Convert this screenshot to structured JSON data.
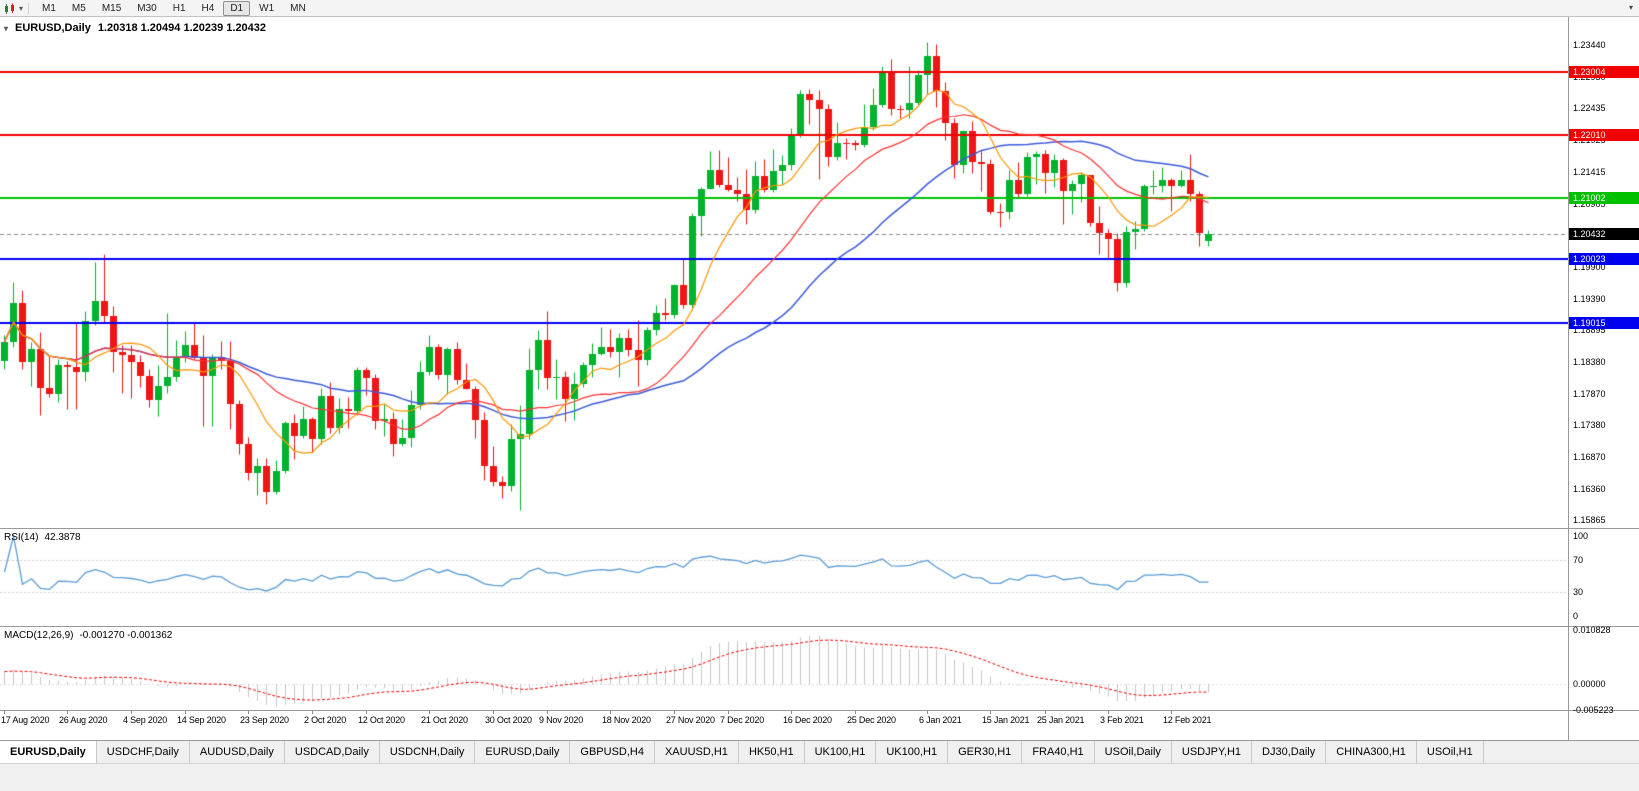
{
  "toolbar": {
    "chart_type_icon": "candlestick-chart-icon",
    "dropdown_icon": "chevron-down-icon",
    "overflow_icon": "chevron-down-icon",
    "timeframes": [
      "M1",
      "M5",
      "M15",
      "M30",
      "H1",
      "H4",
      "D1",
      "W1",
      "MN"
    ],
    "active_timeframe": "D1"
  },
  "chart": {
    "title": "EURUSD,Daily",
    "ohlc": "1.20318 1.20494 1.20239 1.20432",
    "colors": {
      "up": "#00b22d",
      "down": "#ef1515",
      "ma_fast": "#ff9500",
      "ma_mid": "#ff3333",
      "ma_slow": "#3b5bdb",
      "current_line": "#8a8a8a",
      "current_badge": "#000000"
    },
    "price_axis_labels": [
      "1.23440",
      "1.22930",
      "1.22435",
      "1.21925",
      "1.21415",
      "1.20905",
      "1.20395",
      "1.19900",
      "1.19390",
      "1.18895",
      "1.18380",
      "1.17870",
      "1.17380",
      "1.16870",
      "1.16360",
      "1.15865"
    ],
    "levels": [
      {
        "price": 1.23004,
        "label": "1.23004",
        "color": "#f00000"
      },
      {
        "price": 1.2201,
        "label": "1.22010",
        "color": "#f00000"
      },
      {
        "price": 1.21002,
        "label": "1.21002",
        "color": "#00c000"
      },
      {
        "price": 1.20023,
        "label": "1.20023",
        "color": "#0000f0"
      },
      {
        "price": 1.19015,
        "label": "1.19015",
        "color": "#0000f0"
      }
    ],
    "current_price": {
      "price": 1.20432,
      "label": "1.20432"
    },
    "date_labels": [
      {
        "i": 0,
        "label": "17 Aug 2020"
      },
      {
        "i": 7,
        "label": "26 Aug 2020"
      },
      {
        "i": 14,
        "label": "4 Sep 2020"
      },
      {
        "i": 20,
        "label": "14 Sep 2020"
      },
      {
        "i": 27,
        "label": "23 Sep 2020"
      },
      {
        "i": 34,
        "label": "2 Oct 2020"
      },
      {
        "i": 40,
        "label": "12 Oct 2020"
      },
      {
        "i": 47,
        "label": "21 Oct 2020"
      },
      {
        "i": 54,
        "label": "30 Oct 2020"
      },
      {
        "i": 60,
        "label": "9 Nov 2020"
      },
      {
        "i": 67,
        "label": "18 Nov 2020"
      },
      {
        "i": 74,
        "label": "27 Nov 2020"
      },
      {
        "i": 80,
        "label": "7 Dec 2020"
      },
      {
        "i": 87,
        "label": "16 Dec 2020"
      },
      {
        "i": 94,
        "label": "25 Dec 2020"
      },
      {
        "i": 102,
        "label": "6 Jan 2021"
      },
      {
        "i": 109,
        "label": "15 Jan 2021"
      },
      {
        "i": 115,
        "label": "25 Jan 2021"
      },
      {
        "i": 122,
        "label": "3 Feb 2021"
      },
      {
        "i": 129,
        "label": "12 Feb 2021"
      }
    ],
    "candles": [
      [
        1.184,
        1.1882,
        1.1827,
        1.1871
      ],
      [
        1.1871,
        1.1966,
        1.1863,
        1.1933
      ],
      [
        1.1933,
        1.1953,
        1.1828,
        1.1839
      ],
      [
        1.1839,
        1.187,
        1.18,
        1.1859
      ],
      [
        1.1859,
        1.1886,
        1.1754,
        1.1797
      ],
      [
        1.1797,
        1.1848,
        1.1782,
        1.1788
      ],
      [
        1.1788,
        1.1843,
        1.1774,
        1.1833
      ],
      [
        1.1833,
        1.184,
        1.1763,
        1.1831
      ],
      [
        1.1831,
        1.1902,
        1.1763,
        1.1823
      ],
      [
        1.1823,
        1.192,
        1.1808,
        1.1904
      ],
      [
        1.1904,
        1.1998,
        1.1898,
        1.1936
      ],
      [
        1.1936,
        1.2011,
        1.1901,
        1.1912
      ],
      [
        1.1912,
        1.1928,
        1.1822,
        1.1854
      ],
      [
        1.1854,
        1.1865,
        1.1789,
        1.185
      ],
      [
        1.185,
        1.1865,
        1.1781,
        1.1839
      ],
      [
        1.1839,
        1.185,
        1.1799,
        1.1816
      ],
      [
        1.1816,
        1.1827,
        1.1766,
        1.1778
      ],
      [
        1.1778,
        1.1834,
        1.1753,
        1.1801
      ],
      [
        1.1801,
        1.1917,
        1.1789,
        1.1814
      ],
      [
        1.1814,
        1.1874,
        1.1809,
        1.1846
      ],
      [
        1.1846,
        1.1888,
        1.1839,
        1.1866
      ],
      [
        1.1866,
        1.19,
        1.1843,
        1.1845
      ],
      [
        1.1845,
        1.1882,
        1.1737,
        1.1816
      ],
      [
        1.1816,
        1.1852,
        1.1736,
        1.1847
      ],
      [
        1.1847,
        1.1872,
        1.1827,
        1.184
      ],
      [
        1.184,
        1.1872,
        1.1731,
        1.1772
      ],
      [
        1.1772,
        1.1778,
        1.1692,
        1.1707
      ],
      [
        1.1707,
        1.1719,
        1.1651,
        1.1661
      ],
      [
        1.1661,
        1.1686,
        1.1626,
        1.1672
      ],
      [
        1.1672,
        1.1685,
        1.1612,
        1.1631
      ],
      [
        1.1631,
        1.1683,
        1.1628,
        1.1665
      ],
      [
        1.1665,
        1.1745,
        1.1661,
        1.1742
      ],
      [
        1.1742,
        1.1755,
        1.1684,
        1.172
      ],
      [
        1.172,
        1.1769,
        1.1717,
        1.1747
      ],
      [
        1.1747,
        1.1751,
        1.1695,
        1.1716
      ],
      [
        1.1716,
        1.1797,
        1.1708,
        1.1784
      ],
      [
        1.1784,
        1.1806,
        1.1725,
        1.1733
      ],
      [
        1.1733,
        1.1781,
        1.1725,
        1.1763
      ],
      [
        1.1763,
        1.1782,
        1.1733,
        1.1761
      ],
      [
        1.1761,
        1.1831,
        1.1754,
        1.1826
      ],
      [
        1.1826,
        1.1831,
        1.1786,
        1.1813
      ],
      [
        1.1813,
        1.1819,
        1.1731,
        1.1745
      ],
      [
        1.1745,
        1.1772,
        1.172,
        1.1747
      ],
      [
        1.1747,
        1.1758,
        1.1688,
        1.1708
      ],
      [
        1.1708,
        1.1747,
        1.1704,
        1.1718
      ],
      [
        1.1718,
        1.1794,
        1.1703,
        1.177
      ],
      [
        1.177,
        1.184,
        1.1764,
        1.1823
      ],
      [
        1.1823,
        1.1881,
        1.1817,
        1.1862
      ],
      [
        1.1862,
        1.1868,
        1.1811,
        1.1818
      ],
      [
        1.1818,
        1.1863,
        1.1787,
        1.186
      ],
      [
        1.186,
        1.187,
        1.1803,
        1.181
      ],
      [
        1.181,
        1.1837,
        1.1795,
        1.1796
      ],
      [
        1.1796,
        1.18,
        1.1718,
        1.1746
      ],
      [
        1.1746,
        1.1759,
        1.165,
        1.1673
      ],
      [
        1.1673,
        1.1704,
        1.164,
        1.1647
      ],
      [
        1.1647,
        1.1656,
        1.1621,
        1.1641
      ],
      [
        1.1641,
        1.174,
        1.1633,
        1.1715
      ],
      [
        1.1715,
        1.177,
        1.1602,
        1.1723
      ],
      [
        1.1723,
        1.1861,
        1.1716,
        1.1825
      ],
      [
        1.1825,
        1.189,
        1.1795,
        1.1874
      ],
      [
        1.1874,
        1.192,
        1.1795,
        1.1813
      ],
      [
        1.1813,
        1.1843,
        1.1779,
        1.1814
      ],
      [
        1.1814,
        1.1824,
        1.1745,
        1.1779
      ],
      [
        1.1779,
        1.1823,
        1.1746,
        1.1803
      ],
      [
        1.1803,
        1.1839,
        1.1799,
        1.1834
      ],
      [
        1.1834,
        1.1869,
        1.1814,
        1.1852
      ],
      [
        1.1852,
        1.1894,
        1.185,
        1.1862
      ],
      [
        1.1862,
        1.1891,
        1.1846,
        1.1854
      ],
      [
        1.1854,
        1.1885,
        1.1814,
        1.1876
      ],
      [
        1.1876,
        1.1891,
        1.1848,
        1.1857
      ],
      [
        1.1857,
        1.1906,
        1.18,
        1.1841
      ],
      [
        1.1841,
        1.1895,
        1.1833,
        1.189
      ],
      [
        1.189,
        1.193,
        1.1881,
        1.1916
      ],
      [
        1.1916,
        1.1941,
        1.1905,
        1.1914
      ],
      [
        1.1914,
        1.1963,
        1.1909,
        1.1962
      ],
      [
        1.1962,
        1.2003,
        1.1924,
        1.193
      ],
      [
        1.193,
        1.2076,
        1.1922,
        1.2071
      ],
      [
        1.2071,
        1.2118,
        1.204,
        1.2115
      ],
      [
        1.2115,
        1.2175,
        1.2114,
        1.2145
      ],
      [
        1.2145,
        1.2177,
        1.2117,
        1.2121
      ],
      [
        1.2121,
        1.2166,
        1.2111,
        1.2113
      ],
      [
        1.2113,
        1.2134,
        1.2095,
        1.2106
      ],
      [
        1.2106,
        1.2147,
        1.2058,
        1.2081
      ],
      [
        1.2081,
        1.2159,
        1.2076,
        1.2135
      ],
      [
        1.2135,
        1.2163,
        1.211,
        1.2113
      ],
      [
        1.2113,
        1.2178,
        1.211,
        1.2143
      ],
      [
        1.2143,
        1.2169,
        1.2122,
        1.2152
      ],
      [
        1.2152,
        1.2212,
        1.2145,
        1.2199
      ],
      [
        1.2199,
        1.2273,
        1.2197,
        1.2266
      ],
      [
        1.2266,
        1.2274,
        1.2218,
        1.2257
      ],
      [
        1.2257,
        1.2272,
        1.213,
        1.2242
      ],
      [
        1.2242,
        1.225,
        1.2151,
        1.2165
      ],
      [
        1.2165,
        1.2221,
        1.216,
        1.2188
      ],
      [
        1.2188,
        1.2195,
        1.2163,
        1.2187
      ],
      [
        1.2187,
        1.2192,
        1.2176,
        1.2184
      ],
      [
        1.2184,
        1.225,
        1.2181,
        1.2214
      ],
      [
        1.2214,
        1.2276,
        1.2209,
        1.2249
      ],
      [
        1.2249,
        1.231,
        1.2245,
        1.2299
      ],
      [
        1.2299,
        1.2322,
        1.2232,
        1.2242
      ],
      [
        1.2242,
        1.2248,
        1.2228,
        1.224
      ],
      [
        1.224,
        1.231,
        1.2228,
        1.2252
      ],
      [
        1.2252,
        1.2304,
        1.2247,
        1.2296
      ],
      [
        1.2296,
        1.2349,
        1.2266,
        1.2327
      ],
      [
        1.2327,
        1.2345,
        1.2245,
        1.227
      ],
      [
        1.227,
        1.2285,
        1.2193,
        1.222
      ],
      [
        1.222,
        1.2228,
        1.2132,
        1.2152
      ],
      [
        1.2152,
        1.2208,
        1.214,
        1.2207
      ],
      [
        1.2207,
        1.2223,
        1.214,
        1.2158
      ],
      [
        1.2158,
        1.2176,
        1.2111,
        1.2155
      ],
      [
        1.2155,
        1.2163,
        1.2075,
        1.2078
      ],
      [
        1.2078,
        1.2092,
        1.2054,
        1.2077
      ],
      [
        1.2077,
        1.2145,
        1.2066,
        1.2129
      ],
      [
        1.2129,
        1.2158,
        1.2102,
        1.2107
      ],
      [
        1.2107,
        1.2173,
        1.2104,
        1.2166
      ],
      [
        1.2166,
        1.2175,
        1.2123,
        1.217
      ],
      [
        1.217,
        1.2176,
        1.2108,
        1.214
      ],
      [
        1.214,
        1.217,
        1.2118,
        1.2161
      ],
      [
        1.2161,
        1.2164,
        1.2059,
        1.2112
      ],
      [
        1.2112,
        1.2128,
        1.2074,
        1.2123
      ],
      [
        1.2123,
        1.2142,
        1.2093,
        1.2136
      ],
      [
        1.2136,
        1.2137,
        1.2056,
        1.206
      ],
      [
        1.206,
        1.2087,
        1.2011,
        1.2044
      ],
      [
        1.2044,
        1.205,
        1.2002,
        1.2035
      ],
      [
        1.2035,
        1.2045,
        1.1952,
        1.1964
      ],
      [
        1.1964,
        1.2056,
        1.1958,
        1.2046
      ],
      [
        1.2046,
        1.2064,
        1.2018,
        1.205
      ],
      [
        1.205,
        1.2123,
        1.2048,
        1.2119
      ],
      [
        1.2119,
        1.2144,
        1.2106,
        1.2119
      ],
      [
        1.2119,
        1.215,
        1.211,
        1.2128
      ],
      [
        1.2128,
        1.2132,
        1.208,
        1.2119
      ],
      [
        1.2119,
        1.2145,
        1.2117,
        1.2129
      ],
      [
        1.2129,
        1.217,
        1.2096,
        1.2106
      ],
      [
        1.2106,
        1.2112,
        1.2023,
        1.2044
      ],
      [
        1.20318,
        1.20494,
        1.20239,
        1.20432
      ]
    ]
  },
  "rsi": {
    "title": "RSI(14)",
    "value": "42.3878",
    "axis_labels": [
      "100",
      "70",
      "30",
      "0"
    ],
    "line_color": "#5a9bd4",
    "level_line_color": "#cfcfcf"
  },
  "macd": {
    "title": "MACD(12,26,9)",
    "values": "-0.001270 -0.001362",
    "axis_labels": [
      "0.010828",
      "0.00000",
      "-0.005223"
    ],
    "hist_color": "#c6c6c6",
    "signal_color": "#f00000"
  },
  "tabs": {
    "active": 0,
    "items": [
      "EURUSD,Daily",
      "USDCHF,Daily",
      "AUDUSD,Daily",
      "USDCAD,Daily",
      "USDCNH,Daily",
      "EURUSD,Daily",
      "GBPUSD,H4",
      "XAUUSD,H1",
      "HK50,H1",
      "UK100,H1",
      "UK100,H1",
      "GER30,H1",
      "FRA40,H1",
      "USOil,Daily",
      "USDJPY,H1",
      "DJ30,Daily",
      "CHINA300,H1",
      "USOil,H1"
    ]
  }
}
